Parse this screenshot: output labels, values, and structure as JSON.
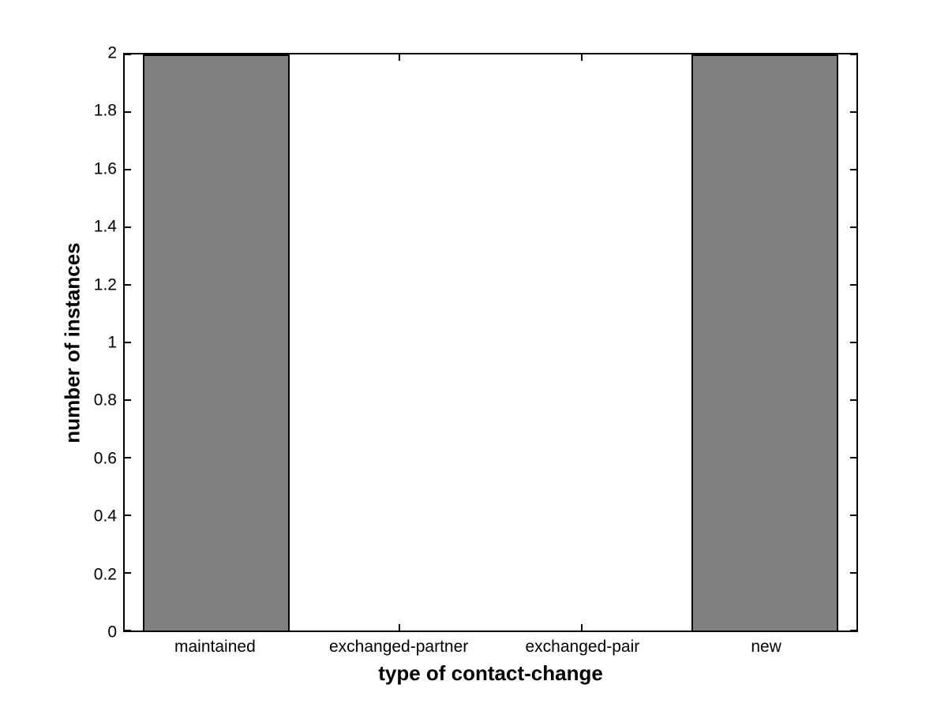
{
  "chart_data": {
    "type": "bar",
    "categories": [
      "maintained",
      "exchanged-partner",
      "exchanged-pair",
      "new"
    ],
    "values": [
      2,
      0,
      0,
      2
    ],
    "xlabel": "type of contact-change",
    "ylabel": "number of instances",
    "xlim": [
      0.5,
      4.5
    ],
    "ylim": [
      0,
      2
    ],
    "yticks": [
      0,
      0.2,
      0.4,
      0.6,
      0.8,
      1,
      1.2,
      1.4,
      1.6,
      1.8,
      2
    ],
    "ytick_labels": [
      "0",
      "0.2",
      "0.4",
      "0.6",
      "0.8",
      "1",
      "1.2",
      "1.4",
      "1.6",
      "1.8",
      "2"
    ],
    "bar_width": 0.8,
    "bar_color": "#808080",
    "bar_edge_color": "#000000",
    "axis_color": "#000000",
    "background_color": "#ffffff",
    "grid": false,
    "tick_direction": "in",
    "box": true
  }
}
